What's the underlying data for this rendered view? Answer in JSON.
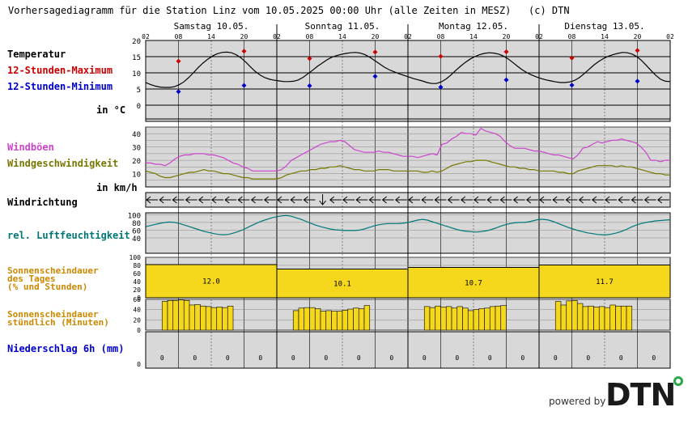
{
  "header": {
    "title": "Vorhersagediagramm für die Station Linz vom 10.05.2025 00:00 Uhr (alle Zeiten in MESZ)",
    "copyright": "(c) DTN"
  },
  "labels": {
    "temperature": "Temperatur",
    "max12": "12-Stunden-Maximum",
    "min12": "12-Stunden-Minimum",
    "temp_unit": "in °C",
    "gusts": "Windböen",
    "wind_speed": "Windgeschwindigkeit",
    "wind_unit": "in km/h",
    "wind_dir": "Windrichtung",
    "humidity": "rel. Luftfeuchtigkeit",
    "sun_day": "Sonnenscheindauer\ndes Tages\n(% und Stunden)",
    "sun_hourly": "Sonnenscheindauer\nstündlich (Minuten)",
    "precip": "Niederschlag 6h (mm)"
  },
  "footer": {
    "powered_by": "powered by",
    "logo": "DTN"
  },
  "colors": {
    "panel_bg": "#d8d8d8",
    "temperature": "#000000",
    "max": "#cc0000",
    "min": "#0000cc",
    "gusts": "#cc44cc",
    "wind": "#777700",
    "humidity": "#007777",
    "sun": "#f5d81c",
    "sun_label": "#cc8800",
    "precip_label": "#0000cc"
  },
  "chart_data": {
    "type": "line",
    "days": [
      "Samstag 10.05.",
      "Sonntag 11.05.",
      "Montag 12.05.",
      "Dienstag 13.05."
    ],
    "hour_ticks": [
      "02",
      "08",
      "14",
      "20",
      "02",
      "08",
      "14",
      "20",
      "02",
      "08",
      "14",
      "20",
      "02",
      "08",
      "14",
      "20",
      "02"
    ],
    "temperature": {
      "ylim": [
        0,
        20
      ],
      "yticks": [
        0,
        5,
        10,
        15,
        20
      ],
      "hourly": [
        7.0,
        6.4,
        5.9,
        5.6,
        5.5,
        5.5,
        5.7,
        6.3,
        7.2,
        8.5,
        10.0,
        11.6,
        13.0,
        14.2,
        15.2,
        15.9,
        16.3,
        16.4,
        16.2,
        15.6,
        14.6,
        13.3,
        11.8,
        10.4,
        9.3,
        8.5,
        8.0,
        7.7,
        7.5,
        7.3,
        7.3,
        7.4,
        7.8,
        8.6,
        9.7,
        10.8,
        12.0,
        13.0,
        14.0,
        14.8,
        15.3,
        15.7,
        16.0,
        16.2,
        16.3,
        16.1,
        15.6,
        14.8,
        13.8,
        12.8,
        11.8,
        11.0,
        10.4,
        9.8,
        9.3,
        8.8,
        8.3,
        7.9,
        7.5,
        7.0,
        6.7,
        6.7,
        7.2,
        8.1,
        9.3,
        10.7,
        12.0,
        13.2,
        14.2,
        15.0,
        15.6,
        16.0,
        16.2,
        16.1,
        15.8,
        15.2,
        14.3,
        13.2,
        12.0,
        10.9,
        10.0,
        9.3,
        8.7,
        8.2,
        7.8,
        7.5,
        7.2,
        7.0,
        7.0,
        7.2,
        7.7,
        8.6,
        9.8,
        11.1,
        12.4,
        13.5,
        14.4,
        15.1,
        15.6,
        16.0,
        16.3,
        16.2,
        15.8,
        15.0,
        13.8,
        12.3,
        10.7,
        9.2,
        8.0,
        7.4,
        7.3
      ],
      "max_12h": [
        {
          "x": 6,
          "v": 13.6
        },
        {
          "x": 18,
          "v": 16.7
        },
        {
          "x": 30,
          "v": 14.4
        },
        {
          "x": 42,
          "v": 16.4
        },
        {
          "x": 54,
          "v": 15.1
        },
        {
          "x": 66,
          "v": 16.5
        },
        {
          "x": 78,
          "v": 14.6
        },
        {
          "x": 90,
          "v": 16.9
        }
      ],
      "min_12h": [
        {
          "x": 6,
          "v": 4.2
        },
        {
          "x": 18,
          "v": 6.1
        },
        {
          "x": 30,
          "v": 6.0
        },
        {
          "x": 42,
          "v": 8.9
        },
        {
          "x": 54,
          "v": 5.6
        },
        {
          "x": 66,
          "v": 7.8
        },
        {
          "x": 78,
          "v": 6.2
        },
        {
          "x": 90,
          "v": 7.4
        }
      ]
    },
    "wind": {
      "ylim": [
        0,
        45
      ],
      "yticks": [
        10,
        20,
        30,
        40
      ],
      "gusts": [
        18,
        18,
        17,
        17,
        16,
        18,
        21,
        23,
        24,
        24,
        25,
        25,
        25,
        24,
        24,
        23,
        22,
        20,
        18,
        17,
        15,
        14,
        12,
        12,
        12,
        12,
        12,
        12,
        13,
        16,
        20,
        22,
        24,
        26,
        28,
        30,
        32,
        33,
        34,
        34,
        35,
        34,
        31,
        28,
        27,
        26,
        26,
        26,
        27,
        26,
        26,
        25,
        24,
        23,
        23,
        23,
        22,
        23,
        24,
        25,
        24,
        32,
        33,
        36,
        38,
        41,
        40,
        40,
        39,
        44,
        42,
        41,
        40,
        38,
        34,
        31,
        29,
        29,
        29,
        28,
        27,
        27,
        26,
        25,
        24,
        24,
        23,
        22,
        21,
        24,
        29,
        30,
        32,
        34,
        33,
        34,
        35,
        35,
        36,
        35,
        34,
        33,
        30,
        26,
        20,
        20,
        19,
        20,
        20
      ],
      "speed": [
        12,
        11,
        10,
        8,
        7,
        7,
        8,
        9,
        10,
        11,
        11,
        12,
        13,
        12,
        12,
        11,
        10,
        10,
        9,
        8,
        7,
        7,
        6,
        6,
        6,
        6,
        6,
        6,
        7,
        9,
        10,
        11,
        12,
        12,
        13,
        13,
        14,
        14,
        15,
        15,
        16,
        15,
        14,
        13,
        13,
        12,
        12,
        12,
        13,
        13,
        13,
        12,
        12,
        12,
        12,
        12,
        12,
        11,
        11,
        12,
        11,
        12,
        14,
        16,
        17,
        18,
        19,
        19,
        20,
        20,
        20,
        19,
        18,
        17,
        16,
        15,
        15,
        14,
        14,
        13,
        13,
        12,
        12,
        12,
        12,
        11,
        11,
        10,
        10,
        12,
        13,
        14,
        15,
        16,
        16,
        16,
        16,
        15,
        16,
        15,
        15,
        14,
        13,
        12,
        11,
        10,
        10,
        9,
        9
      ]
    },
    "wind_direction": "<",
    "humidity": {
      "ylim": [
        0,
        100
      ],
      "yticks": [
        40,
        60,
        80,
        100
      ],
      "hourly": [
        69,
        72,
        75,
        78,
        80,
        81,
        80,
        77,
        73,
        69,
        65,
        61,
        57,
        54,
        51,
        49,
        48,
        49,
        52,
        56,
        61,
        67,
        73,
        79,
        84,
        88,
        92,
        95,
        97,
        98,
        96,
        92,
        88,
        83,
        78,
        73,
        69,
        66,
        63,
        61,
        60,
        59,
        59,
        59,
        60,
        63,
        67,
        71,
        74,
        76,
        77,
        77,
        77,
        78,
        80,
        83,
        86,
        88,
        86,
        82,
        78,
        74,
        70,
        66,
        62,
        59,
        57,
        56,
        55,
        56,
        58,
        61,
        65,
        70,
        74,
        77,
        79,
        80,
        80,
        82,
        85,
        88,
        88,
        86,
        82,
        77,
        72,
        67,
        63,
        59,
        56,
        53,
        51,
        49,
        48,
        48,
        50,
        53,
        57,
        62,
        68,
        73,
        77,
        80,
        82,
        84,
        85,
        86,
        87
      ],
      "display_hours": 109
    },
    "sun_daily": {
      "ylim": [
        0,
        100
      ],
      "yticks": [
        0,
        20,
        40,
        60,
        80,
        100
      ],
      "percent": [
        82,
        71,
        75,
        81
      ],
      "hours": [
        "12.0",
        "10.1",
        "10.7",
        "11.7"
      ]
    },
    "sun_hourly": {
      "ylim": [
        0,
        60
      ],
      "yticks": [
        0,
        20,
        40,
        60
      ],
      "minutes": [
        [
          0,
          0,
          0,
          0,
          0,
          0,
          0,
          0,
          0,
          56,
          58,
          58,
          59,
          58,
          49,
          50,
          47,
          46,
          44,
          45,
          44,
          47,
          0,
          0
        ],
        [
          0,
          0,
          0,
          0,
          0,
          0,
          0,
          0,
          0,
          38,
          43,
          44,
          44,
          42,
          37,
          38,
          37,
          37,
          39,
          41,
          43,
          42,
          48,
          0
        ],
        [
          0,
          0,
          0,
          0,
          0,
          0,
          0,
          0,
          0,
          46,
          44,
          47,
          45,
          46,
          43,
          46,
          43,
          38,
          40,
          42,
          43,
          46,
          47,
          48
        ],
        [
          0,
          0,
          0,
          0,
          0,
          0,
          0,
          0,
          0,
          56,
          49,
          57,
          58,
          52,
          46,
          47,
          45,
          46,
          44,
          49,
          47,
          47,
          47,
          0
        ]
      ]
    },
    "precip_6h": {
      "values": [
        "0",
        "0",
        "0",
        "0",
        "0",
        "0",
        "0",
        "0",
        "0",
        "0",
        "0",
        "0",
        "0",
        "0",
        "0",
        "0"
      ]
    }
  }
}
